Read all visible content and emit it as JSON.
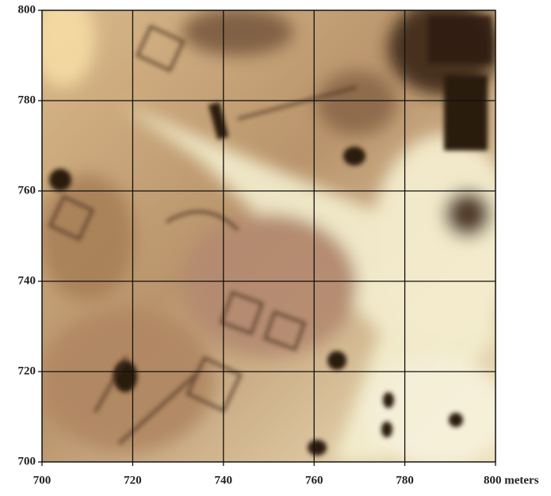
{
  "map": {
    "xlim": [
      700,
      800
    ],
    "ylim": [
      700,
      800
    ],
    "xticks": [
      700,
      720,
      740,
      760,
      780,
      {
        "value": 800,
        "label": "800 meters"
      }
    ],
    "yticks": [
      700,
      720,
      740,
      760,
      780,
      800
    ],
    "grid": true
  }
}
